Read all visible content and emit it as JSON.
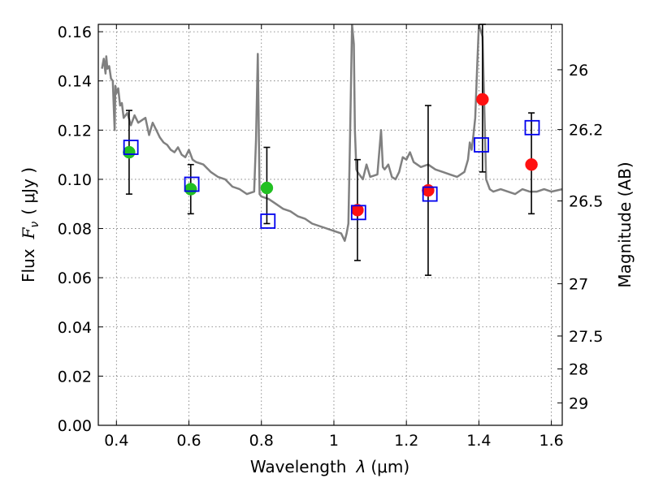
{
  "chart_data": {
    "type": "scatter",
    "x_axis": {
      "label_text": "Wavelength",
      "label_symbol": "λ",
      "label_unit": "(μm)",
      "range": [
        0.35,
        1.63
      ],
      "ticks": [
        0.4,
        0.6,
        0.8,
        1.0,
        1.2,
        1.4,
        1.6
      ],
      "tick_labels": [
        "0.4",
        "0.6",
        "0.8",
        "1",
        "1.2",
        "1.4",
        "1.6"
      ]
    },
    "y_axis": {
      "label_text": "Flux",
      "label_symbol": "F",
      "label_subscript": "ν",
      "label_unit": "( μJy )",
      "range": [
        0.0,
        0.163
      ],
      "ticks": [
        0.0,
        0.02,
        0.04,
        0.06,
        0.08,
        0.1,
        0.12,
        0.14,
        0.16
      ],
      "tick_labels": [
        "0.00",
        "0.02",
        "0.04",
        "0.06",
        "0.08",
        "0.10",
        "0.12",
        "0.14",
        "0.16"
      ]
    },
    "y2_axis": {
      "label": "Magnitude (AB)",
      "scale": "AB magnitude (m = 23.9 - 2.5 log10 F)",
      "ticks": [
        26,
        26.2,
        26.5,
        27,
        27.5,
        28,
        29
      ],
      "tick_labels": [
        "26",
        "26.2",
        "26.5",
        "27",
        "27.5",
        "28",
        "29"
      ]
    },
    "grid": true,
    "series": [
      {
        "kind": "line",
        "color": "#808080",
        "x": [
          0.36,
          0.365,
          0.37,
          0.372,
          0.375,
          0.38,
          0.385,
          0.39,
          0.395,
          0.397,
          0.4,
          0.405,
          0.41,
          0.415,
          0.42,
          0.43,
          0.44,
          0.45,
          0.46,
          0.47,
          0.48,
          0.49,
          0.5,
          0.51,
          0.52,
          0.53,
          0.54,
          0.55,
          0.56,
          0.57,
          0.58,
          0.59,
          0.6,
          0.61,
          0.62,
          0.64,
          0.66,
          0.68,
          0.7,
          0.72,
          0.74,
          0.76,
          0.78,
          0.785,
          0.79,
          0.795,
          0.8,
          0.82,
          0.84,
          0.86,
          0.88,
          0.9,
          0.92,
          0.94,
          0.96,
          0.98,
          1.0,
          1.02,
          1.03,
          1.035,
          1.04,
          1.045,
          1.05,
          1.055,
          1.058,
          1.062,
          1.065,
          1.07,
          1.08,
          1.09,
          1.1,
          1.12,
          1.13,
          1.135,
          1.14,
          1.15,
          1.16,
          1.17,
          1.18,
          1.19,
          1.2,
          1.21,
          1.22,
          1.24,
          1.26,
          1.28,
          1.3,
          1.32,
          1.34,
          1.36,
          1.37,
          1.375,
          1.38,
          1.385,
          1.39,
          1.395,
          1.4,
          1.41,
          1.42,
          1.43,
          1.44,
          1.46,
          1.48,
          1.5,
          1.52,
          1.54,
          1.56,
          1.58,
          1.6,
          1.63
        ],
        "y": [
          0.145,
          0.149,
          0.143,
          0.15,
          0.145,
          0.146,
          0.141,
          0.14,
          0.12,
          0.138,
          0.135,
          0.137,
          0.13,
          0.131,
          0.125,
          0.127,
          0.122,
          0.126,
          0.123,
          0.124,
          0.125,
          0.118,
          0.123,
          0.12,
          0.117,
          0.115,
          0.114,
          0.112,
          0.111,
          0.113,
          0.11,
          0.109,
          0.112,
          0.108,
          0.107,
          0.106,
          0.103,
          0.101,
          0.1,
          0.097,
          0.096,
          0.094,
          0.095,
          0.116,
          0.151,
          0.094,
          0.093,
          0.092,
          0.09,
          0.088,
          0.087,
          0.085,
          0.084,
          0.082,
          0.081,
          0.08,
          0.079,
          0.078,
          0.075,
          0.078,
          0.082,
          0.12,
          0.163,
          0.155,
          0.12,
          0.104,
          0.103,
          0.102,
          0.1,
          0.106,
          0.101,
          0.102,
          0.12,
          0.105,
          0.104,
          0.106,
          0.101,
          0.1,
          0.103,
          0.109,
          0.108,
          0.111,
          0.107,
          0.105,
          0.106,
          0.104,
          0.103,
          0.102,
          0.101,
          0.103,
          0.108,
          0.115,
          0.112,
          0.118,
          0.125,
          0.145,
          0.163,
          0.158,
          0.1,
          0.096,
          0.095,
          0.096,
          0.095,
          0.094,
          0.096,
          0.095,
          0.095,
          0.096,
          0.095,
          0.096
        ]
      },
      {
        "kind": "errorbar",
        "color": "#000000",
        "x": [
          0.435,
          0.605,
          0.815,
          1.065,
          1.26,
          1.41,
          1.545
        ],
        "y_low": [
          0.094,
          0.086,
          0.082,
          0.067,
          0.061,
          0.103,
          0.086
        ],
        "y_high": [
          0.128,
          0.106,
          0.113,
          0.108,
          0.13,
          0.163,
          0.127
        ]
      },
      {
        "kind": "scatter",
        "marker": "circle",
        "color": "#22c022",
        "x": [
          0.435,
          0.605,
          0.815
        ],
        "y": [
          0.111,
          0.096,
          0.0965
        ]
      },
      {
        "kind": "scatter",
        "marker": "circle",
        "color": "#ff1111",
        "x": [
          1.065,
          1.26,
          1.41,
          1.545
        ],
        "y": [
          0.0875,
          0.0955,
          0.1325,
          0.106
        ]
      },
      {
        "kind": "scatter",
        "marker": "open-square",
        "color": "#0000ee",
        "x": [
          0.44,
          0.608,
          0.818,
          1.068,
          1.265,
          1.407,
          1.547
        ],
        "y": [
          0.113,
          0.098,
          0.083,
          0.0865,
          0.094,
          0.114,
          0.121
        ]
      }
    ]
  }
}
